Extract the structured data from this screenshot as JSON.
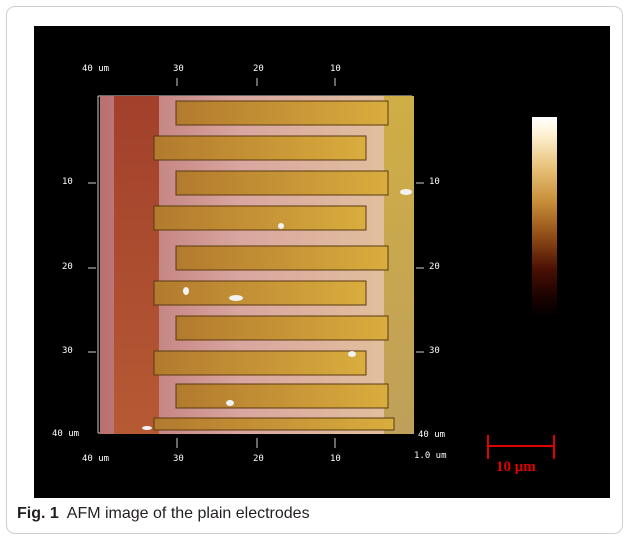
{
  "figure": {
    "top_axis_labels": [
      "40 um",
      "30",
      "20",
      "10"
    ],
    "left_axis_labels": [
      "10",
      "20",
      "30",
      "40 um"
    ],
    "right_axis_labels": [
      "10",
      "20",
      "30",
      "40 um"
    ],
    "bottom_axis_labels": [
      "40 um",
      "30",
      "20",
      "10",
      "1.0 um"
    ],
    "scale_bar_label": "10 μm",
    "colors": {
      "background": "#000000",
      "scale_bar": "#e00000",
      "electrode_gold": "#c99a2e",
      "substrate_pink": "#d7a3a3",
      "base_copper": "#a84a2a"
    },
    "colorbar": "height-colorbar"
  },
  "caption": {
    "label": "Fig. 1",
    "text": "AFM image of the plain electrodes"
  }
}
